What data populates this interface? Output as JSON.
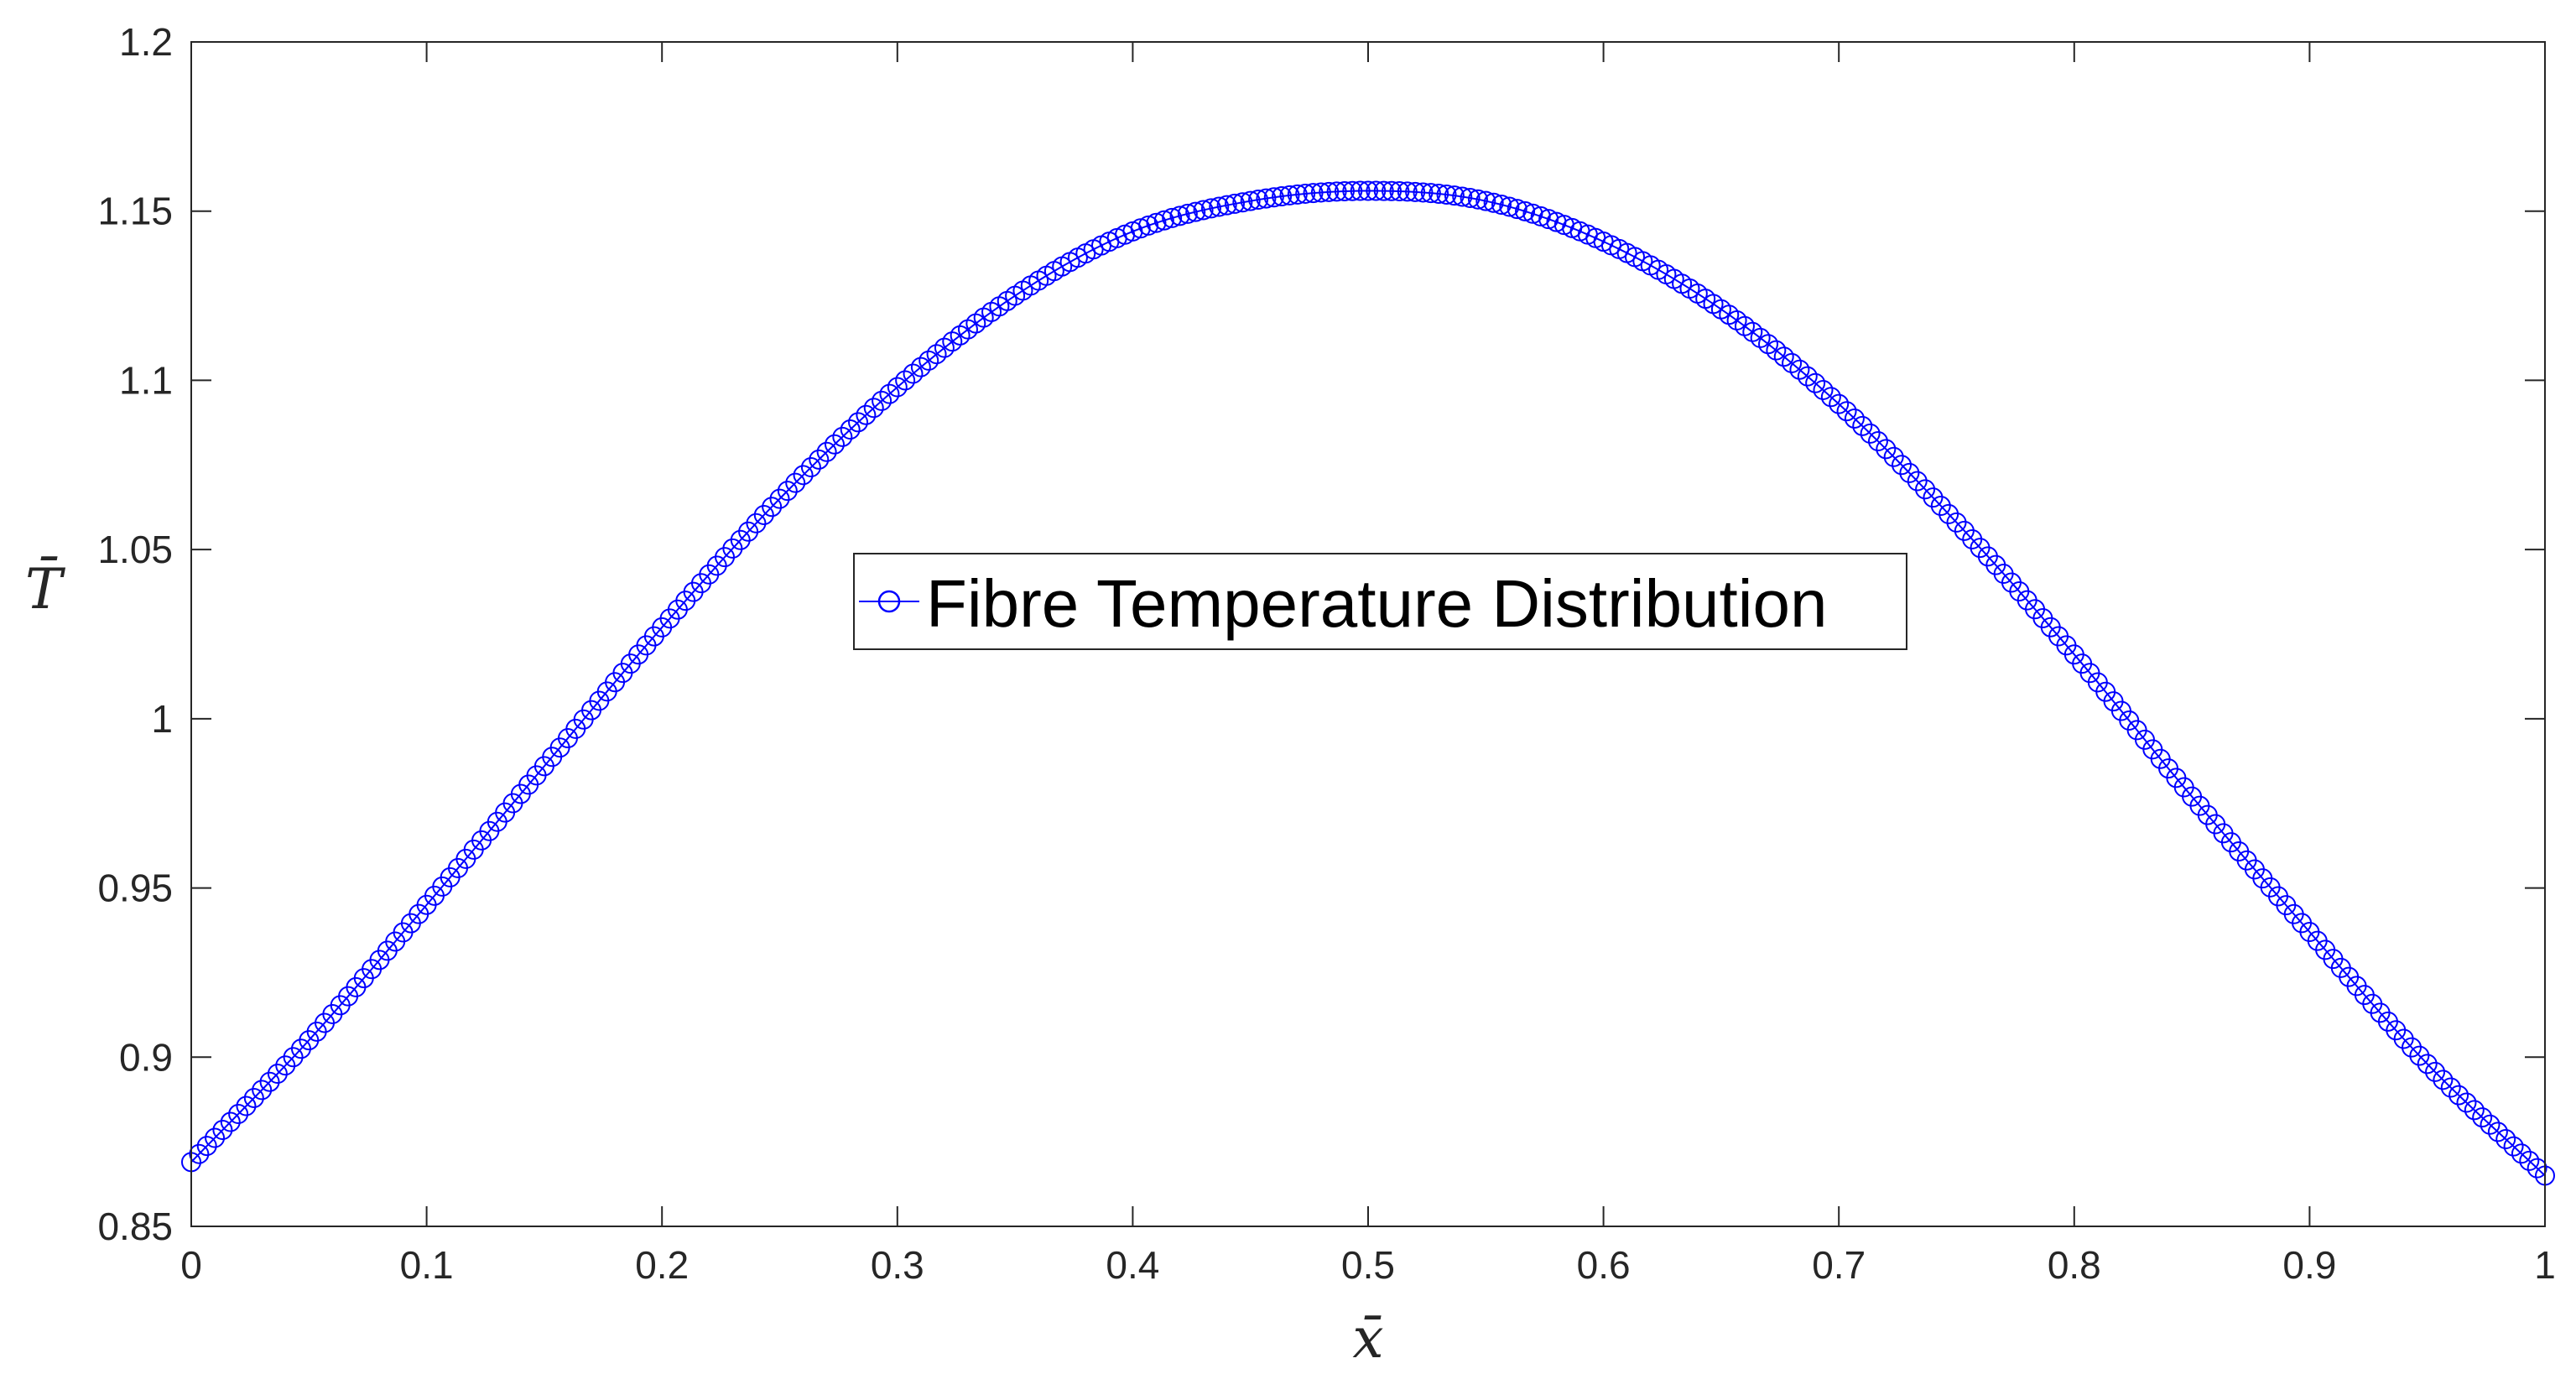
{
  "chart_data": {
    "type": "scatter",
    "title": "",
    "xlabel": "x̄",
    "ylabel": "T̄",
    "xlim": [
      0,
      1
    ],
    "ylim": [
      0.85,
      1.2
    ],
    "xticks": [
      0,
      0.1,
      0.2,
      0.3,
      0.4,
      0.5,
      0.6,
      0.7,
      0.8,
      0.9,
      1
    ],
    "xtick_labels": [
      "0",
      "0.1",
      "0.2",
      "0.3",
      "0.4",
      "0.5",
      "0.6",
      "0.7",
      "0.8",
      "0.9",
      "1"
    ],
    "yticks": [
      0.85,
      0.9,
      0.95,
      1,
      1.05,
      1.1,
      1.15,
      1.2
    ],
    "ytick_labels": [
      "0.85",
      "0.9",
      "0.95",
      "1",
      "1.05",
      "1.1",
      "1.15",
      "1.2"
    ],
    "grid": false,
    "legend_position": "center",
    "series": [
      {
        "name": "Fibre Temperature Distribution",
        "marker": "circle",
        "line": "solid",
        "color": "#0000ff",
        "x": [
          0,
          0.05,
          0.1,
          0.15,
          0.2,
          0.25,
          0.3,
          0.35,
          0.4,
          0.45,
          0.5,
          0.55,
          0.6,
          0.65,
          0.7,
          0.75,
          0.8,
          0.85,
          0.9,
          0.95,
          1
        ],
        "y": [
          0.869,
          0.905,
          0.945,
          0.986,
          1.027,
          1.065,
          1.098,
          1.125,
          1.144,
          1.153,
          1.156,
          1.153,
          1.141,
          1.121,
          1.093,
          1.058,
          1.019,
          0.977,
          0.937,
          0.898,
          0.865
        ]
      }
    ],
    "colors": {
      "axes": "#262626",
      "background": "#ffffff",
      "series": "#0000ff"
    }
  }
}
